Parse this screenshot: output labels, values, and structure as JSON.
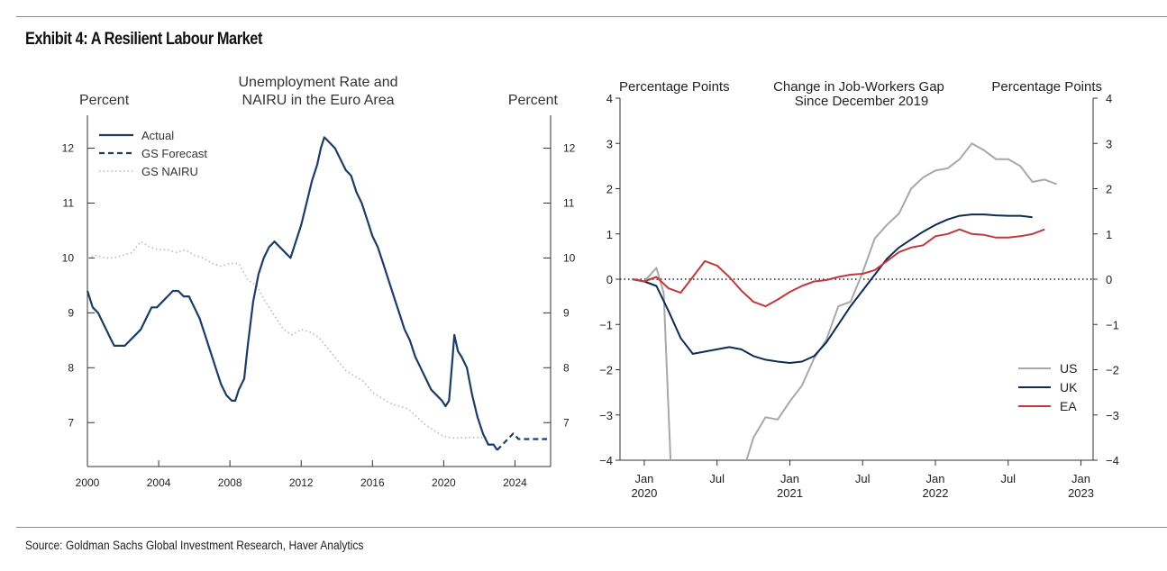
{
  "page": {
    "title": "Exhibit 4: A Resilient Labour Market",
    "source": "Source: Goldman Sachs Global Investment Research, Haver Analytics"
  },
  "colors": {
    "navy": "#1b3d63",
    "grey": "#a8a8a8",
    "dotted": "#b8b8b8",
    "red": "#c0393c",
    "ea_navy": "#0e2c50"
  },
  "chart_data": [
    {
      "type": "line",
      "title": "Unemployment Rate and NAIRU in the Euro Area",
      "title_lines": [
        "Unemployment Rate and",
        "NAIRU in the Euro Area"
      ],
      "ylabel_left": "Percent",
      "ylabel_right": "Percent",
      "xlim": [
        2000,
        2026
      ],
      "ylim": [
        6.2,
        12.6
      ],
      "xticks": [
        2000,
        2004,
        2008,
        2012,
        2016,
        2020,
        2024
      ],
      "xtick_labels": [
        "2000",
        "2004",
        "2008",
        "2012",
        "2016",
        "2020",
        "2024"
      ],
      "yticks": [
        7,
        8,
        9,
        10,
        11,
        12
      ],
      "ytick_labels": [
        "7",
        "8",
        "9",
        "10",
        "11",
        "12"
      ],
      "legend_position": "top-left",
      "series": [
        {
          "name": "Actual",
          "style": "solid",
          "color": "#1b3d63",
          "points": [
            [
              2000,
              9.4
            ],
            [
              2000.3,
              9.1
            ],
            [
              2000.6,
              9.0
            ],
            [
              2000.9,
              8.8
            ],
            [
              2001.2,
              8.6
            ],
            [
              2001.5,
              8.4
            ],
            [
              2001.8,
              8.4
            ],
            [
              2002.1,
              8.4
            ],
            [
              2002.4,
              8.5
            ],
            [
              2002.7,
              8.6
            ],
            [
              2003.0,
              8.7
            ],
            [
              2003.3,
              8.9
            ],
            [
              2003.6,
              9.1
            ],
            [
              2003.9,
              9.1
            ],
            [
              2004.2,
              9.2
            ],
            [
              2004.5,
              9.3
            ],
            [
              2004.8,
              9.4
            ],
            [
              2005.1,
              9.4
            ],
            [
              2005.4,
              9.3
            ],
            [
              2005.7,
              9.3
            ],
            [
              2006.0,
              9.1
            ],
            [
              2006.3,
              8.9
            ],
            [
              2006.6,
              8.6
            ],
            [
              2006.9,
              8.3
            ],
            [
              2007.2,
              8.0
            ],
            [
              2007.5,
              7.7
            ],
            [
              2007.8,
              7.5
            ],
            [
              2008.1,
              7.4
            ],
            [
              2008.3,
              7.4
            ],
            [
              2008.5,
              7.6
            ],
            [
              2008.8,
              7.8
            ],
            [
              2009.0,
              8.4
            ],
            [
              2009.3,
              9.2
            ],
            [
              2009.6,
              9.7
            ],
            [
              2009.9,
              10.0
            ],
            [
              2010.2,
              10.2
            ],
            [
              2010.5,
              10.3
            ],
            [
              2010.8,
              10.2
            ],
            [
              2011.1,
              10.1
            ],
            [
              2011.4,
              10.0
            ],
            [
              2011.7,
              10.3
            ],
            [
              2012.0,
              10.6
            ],
            [
              2012.3,
              11.0
            ],
            [
              2012.6,
              11.4
            ],
            [
              2012.9,
              11.7
            ],
            [
              2013.1,
              12.0
            ],
            [
              2013.3,
              12.2
            ],
            [
              2013.6,
              12.1
            ],
            [
              2013.9,
              12.0
            ],
            [
              2014.2,
              11.8
            ],
            [
              2014.5,
              11.6
            ],
            [
              2014.8,
              11.5
            ],
            [
              2015.1,
              11.2
            ],
            [
              2015.4,
              11.0
            ],
            [
              2015.7,
              10.7
            ],
            [
              2016.0,
              10.4
            ],
            [
              2016.3,
              10.2
            ],
            [
              2016.6,
              9.9
            ],
            [
              2016.9,
              9.6
            ],
            [
              2017.2,
              9.3
            ],
            [
              2017.5,
              9.0
            ],
            [
              2017.8,
              8.7
            ],
            [
              2018.1,
              8.5
            ],
            [
              2018.4,
              8.2
            ],
            [
              2018.7,
              8.0
            ],
            [
              2019.0,
              7.8
            ],
            [
              2019.3,
              7.6
            ],
            [
              2019.6,
              7.5
            ],
            [
              2019.9,
              7.4
            ],
            [
              2020.1,
              7.3
            ],
            [
              2020.3,
              7.4
            ],
            [
              2020.5,
              8.2
            ],
            [
              2020.6,
              8.6
            ],
            [
              2020.8,
              8.3
            ],
            [
              2021.0,
              8.2
            ],
            [
              2021.3,
              8.0
            ],
            [
              2021.6,
              7.5
            ],
            [
              2021.9,
              7.1
            ],
            [
              2022.2,
              6.8
            ],
            [
              2022.5,
              6.6
            ],
            [
              2022.8,
              6.6
            ],
            [
              2023.0,
              6.5
            ]
          ]
        },
        {
          "name": "GS Forecast",
          "style": "dashed",
          "color": "#1b3d63",
          "points": [
            [
              2023.0,
              6.5
            ],
            [
              2023.3,
              6.6
            ],
            [
              2023.6,
              6.7
            ],
            [
              2023.9,
              6.8
            ],
            [
              2024.2,
              6.7
            ],
            [
              2024.6,
              6.7
            ],
            [
              2025.0,
              6.7
            ],
            [
              2025.5,
              6.7
            ],
            [
              2025.8,
              6.7
            ]
          ]
        },
        {
          "name": "GS NAIRU",
          "style": "dotted",
          "color": "#b8b8b8",
          "points": [
            [
              2000,
              10.0
            ],
            [
              2000.5,
              10.05
            ],
            [
              2001.0,
              10.0
            ],
            [
              2001.5,
              10.0
            ],
            [
              2002.0,
              10.05
            ],
            [
              2002.5,
              10.1
            ],
            [
              2003.0,
              10.3
            ],
            [
              2003.5,
              10.2
            ],
            [
              2004.0,
              10.15
            ],
            [
              2004.5,
              10.15
            ],
            [
              2005.0,
              10.1
            ],
            [
              2005.5,
              10.15
            ],
            [
              2006.0,
              10.05
            ],
            [
              2006.5,
              10.0
            ],
            [
              2007.0,
              9.9
            ],
            [
              2007.5,
              9.85
            ],
            [
              2008.0,
              9.9
            ],
            [
              2008.5,
              9.9
            ],
            [
              2009.0,
              9.6
            ],
            [
              2009.5,
              9.5
            ],
            [
              2010.0,
              9.2
            ],
            [
              2010.5,
              8.95
            ],
            [
              2011.0,
              8.7
            ],
            [
              2011.5,
              8.6
            ],
            [
              2012.0,
              8.7
            ],
            [
              2012.5,
              8.65
            ],
            [
              2013.0,
              8.55
            ],
            [
              2013.5,
              8.35
            ],
            [
              2014.0,
              8.15
            ],
            [
              2014.5,
              7.95
            ],
            [
              2015.0,
              7.85
            ],
            [
              2015.5,
              7.75
            ],
            [
              2016.0,
              7.55
            ],
            [
              2016.5,
              7.45
            ],
            [
              2017.0,
              7.35
            ],
            [
              2017.5,
              7.3
            ],
            [
              2018.0,
              7.25
            ],
            [
              2018.5,
              7.1
            ],
            [
              2019.0,
              6.95
            ],
            [
              2019.5,
              6.85
            ],
            [
              2020.0,
              6.75
            ],
            [
              2020.5,
              6.72
            ],
            [
              2021.0,
              6.72
            ],
            [
              2021.5,
              6.73
            ],
            [
              2022.0,
              6.73
            ],
            [
              2022.5,
              6.72
            ]
          ]
        }
      ]
    },
    {
      "type": "line",
      "title": "Change in Job-Workers Gap Since December 2019",
      "title_lines": [
        "Change in Job-Workers Gap",
        "Since December 2019"
      ],
      "ylabel_left": "Percentage Points",
      "ylabel_right": "Percentage Points",
      "x_units": "months since Jan 2020",
      "xlim": [
        -2,
        37
      ],
      "ylim": [
        -4,
        4
      ],
      "xticks": [
        0,
        6,
        12,
        18,
        24,
        30,
        36
      ],
      "xtick_labels": [
        [
          "Jan",
          "2020"
        ],
        [
          "Jul",
          ""
        ],
        [
          "Jan",
          "2021"
        ],
        [
          "Jul",
          ""
        ],
        [
          "Jan",
          "2022"
        ],
        [
          "Jul",
          ""
        ],
        [
          "Jan",
          "2023"
        ]
      ],
      "yticks": [
        -4,
        -3,
        -2,
        -1,
        0,
        1,
        2,
        3,
        4
      ],
      "ytick_labels": [
        "−4",
        "−3",
        "−2",
        "−1",
        "0",
        "1",
        "2",
        "3",
        "4"
      ],
      "zero_line": "dotted",
      "legend_position": "bottom-right",
      "series": [
        {
          "name": "US",
          "color": "#a8a8a8",
          "points": [
            [
              -1,
              0
            ],
            [
              0,
              -0.05
            ],
            [
              1,
              0.25
            ],
            [
              1.6,
              -0.3
            ],
            [
              2.2,
              -4.2
            ]
          ],
          "points2": [
            [
              8.2,
              -4.2
            ],
            [
              9,
              -3.5
            ],
            [
              10,
              -3.05
            ],
            [
              11,
              -3.1
            ],
            [
              12,
              -2.7
            ],
            [
              13,
              -2.35
            ],
            [
              14,
              -1.75
            ],
            [
              15,
              -1.35
            ],
            [
              16,
              -0.6
            ],
            [
              17,
              -0.5
            ],
            [
              18,
              0.15
            ],
            [
              19,
              0.9
            ],
            [
              20,
              1.2
            ],
            [
              21,
              1.45
            ],
            [
              22,
              2.0
            ],
            [
              23,
              2.25
            ],
            [
              24,
              2.4
            ],
            [
              25,
              2.45
            ],
            [
              26,
              2.65
            ],
            [
              27,
              3.0
            ],
            [
              28,
              2.85
            ],
            [
              29,
              2.65
            ],
            [
              30,
              2.65
            ],
            [
              31,
              2.5
            ],
            [
              32,
              2.15
            ],
            [
              33,
              2.2
            ],
            [
              34,
              2.1
            ]
          ]
        },
        {
          "name": "UK",
          "color": "#0e2c50",
          "points": [
            [
              -1,
              0
            ],
            [
              0,
              -0.05
            ],
            [
              1,
              -0.15
            ],
            [
              2,
              -0.7
            ],
            [
              3,
              -1.3
            ],
            [
              4,
              -1.65
            ],
            [
              5,
              -1.6
            ],
            [
              6,
              -1.55
            ],
            [
              7,
              -1.5
            ],
            [
              8,
              -1.55
            ],
            [
              9,
              -1.7
            ],
            [
              10,
              -1.78
            ],
            [
              11,
              -1.82
            ],
            [
              12,
              -1.85
            ],
            [
              13,
              -1.82
            ],
            [
              14,
              -1.7
            ],
            [
              15,
              -1.4
            ],
            [
              16,
              -1.0
            ],
            [
              17,
              -0.6
            ],
            [
              18,
              -0.25
            ],
            [
              19,
              0.1
            ],
            [
              20,
              0.45
            ],
            [
              21,
              0.7
            ],
            [
              22,
              0.88
            ],
            [
              23,
              1.05
            ],
            [
              24,
              1.2
            ],
            [
              25,
              1.32
            ],
            [
              26,
              1.4
            ],
            [
              27,
              1.43
            ],
            [
              28,
              1.43
            ],
            [
              29,
              1.41
            ],
            [
              30,
              1.4
            ],
            [
              31,
              1.4
            ],
            [
              32,
              1.37
            ]
          ]
        },
        {
          "name": "EA",
          "color": "#c0393c",
          "points": [
            [
              -1,
              0
            ],
            [
              0,
              -0.05
            ],
            [
              1,
              0.05
            ],
            [
              2,
              -0.2
            ],
            [
              3,
              -0.3
            ],
            [
              4,
              0.05
            ],
            [
              5,
              0.4
            ],
            [
              6,
              0.3
            ],
            [
              7,
              0.05
            ],
            [
              8,
              -0.25
            ],
            [
              9,
              -0.5
            ],
            [
              10,
              -0.6
            ],
            [
              11,
              -0.45
            ],
            [
              12,
              -0.28
            ],
            [
              13,
              -0.15
            ],
            [
              14,
              -0.05
            ],
            [
              15,
              -0.02
            ],
            [
              16,
              0.05
            ],
            [
              17,
              0.1
            ],
            [
              18,
              0.12
            ],
            [
              19,
              0.2
            ],
            [
              20,
              0.4
            ],
            [
              21,
              0.6
            ],
            [
              22,
              0.7
            ],
            [
              23,
              0.75
            ],
            [
              24,
              0.95
            ],
            [
              25,
              1.0
            ],
            [
              26,
              1.1
            ],
            [
              27,
              1.0
            ],
            [
              28,
              0.98
            ],
            [
              29,
              0.92
            ],
            [
              30,
              0.92
            ],
            [
              31,
              0.95
            ],
            [
              32,
              1.0
            ],
            [
              33,
              1.1
            ]
          ]
        }
      ]
    }
  ]
}
